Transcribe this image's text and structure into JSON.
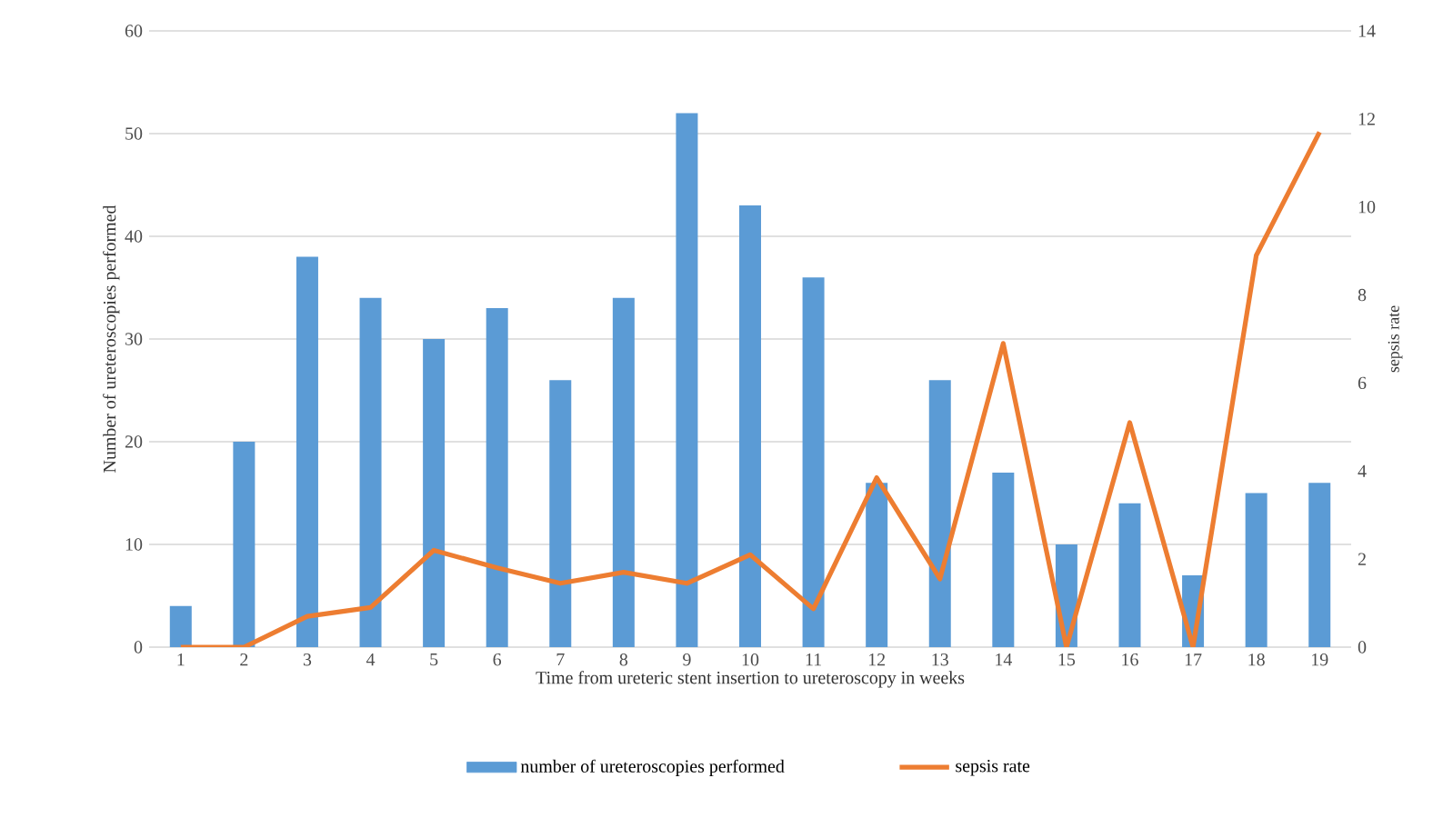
{
  "chart_data": {
    "type": "bar",
    "xlabel": "Time from ureteric stent insertion to ureteroscopy in weeks",
    "ylabel": "Number of ureteroscopies performed",
    "y2label": "sepsis rate",
    "categories": [
      "1",
      "2",
      "3",
      "4",
      "5",
      "6",
      "7",
      "8",
      "9",
      "10",
      "11",
      "12",
      "13",
      "14",
      "15",
      "16",
      "17",
      "18",
      "19"
    ],
    "series": [
      {
        "name": "number of ureteroscopies performed",
        "color": "#5b9bd5",
        "values": [
          4,
          20,
          38,
          34,
          30,
          33,
          26,
          34,
          52,
          43,
          36,
          16,
          26,
          17,
          10,
          14,
          7,
          15,
          16
        ]
      },
      {
        "name": "sepsis rate",
        "type": "line",
        "axis": "y2",
        "color": "#ed7d31",
        "values": [
          0,
          0,
          0.7,
          0.9,
          2.2,
          1.8,
          1.45,
          1.7,
          1.45,
          2.1,
          0.87,
          3.85,
          1.55,
          6.9,
          0,
          5.1,
          0,
          8.9,
          11.7
        ]
      }
    ],
    "ylim": [
      0,
      60
    ],
    "yticks": [
      0,
      10,
      20,
      30,
      40,
      50,
      60
    ],
    "y2lim": [
      0,
      14
    ],
    "y2ticks": [
      0,
      2,
      4,
      6,
      8,
      10,
      12,
      14
    ],
    "grid": "y",
    "legend": "bottom"
  }
}
